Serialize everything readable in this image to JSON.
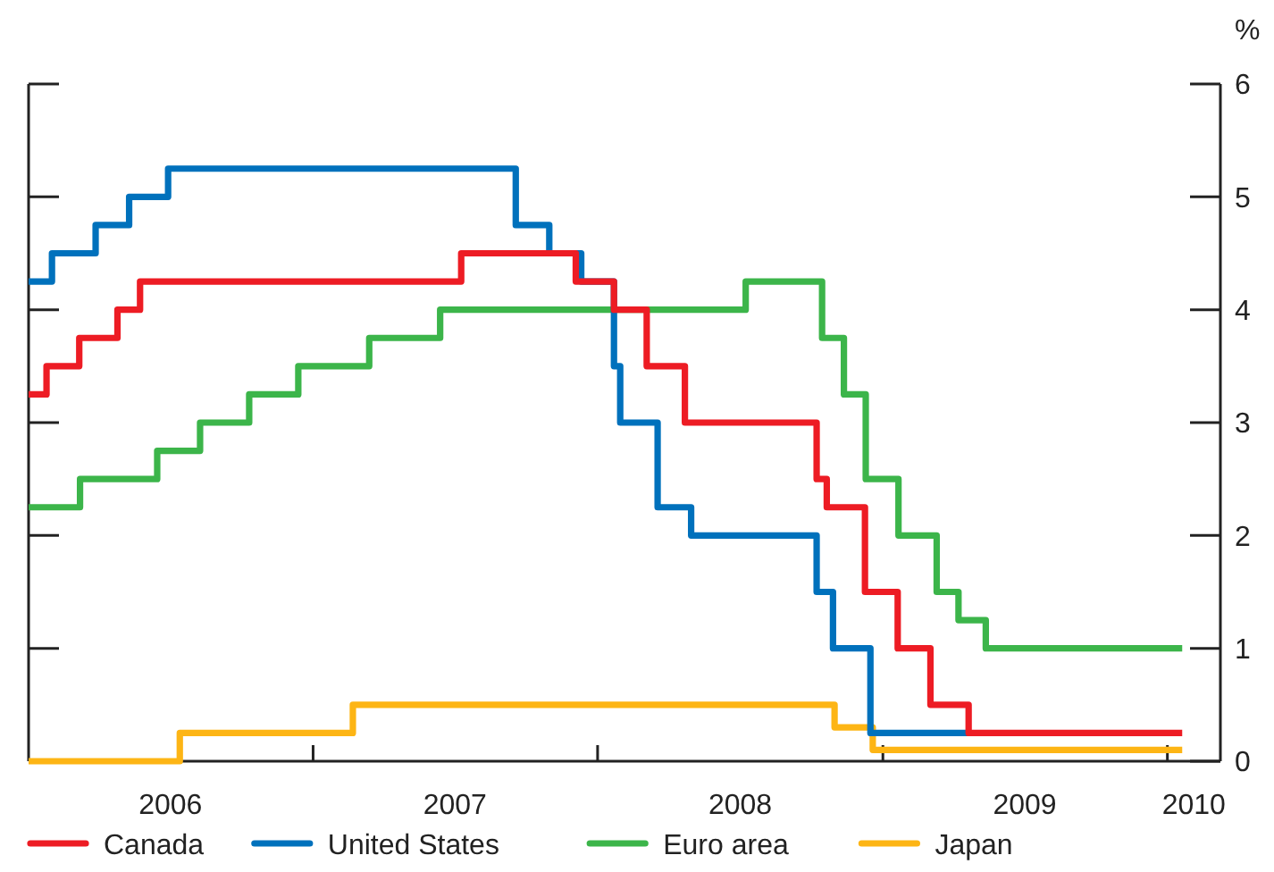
{
  "chart_data": {
    "type": "step",
    "ylabel": "%",
    "xlim": [
      "2006-01-01",
      "2010-03-10"
    ],
    "ylim": [
      0,
      6
    ],
    "yticks": [
      0,
      1,
      2,
      3,
      4,
      5,
      6
    ],
    "xticks": [
      {
        "value": "2007-01-01",
        "label": null
      },
      {
        "value": "2008-01-01",
        "label": null
      },
      {
        "value": "2009-01-01",
        "label": null
      },
      {
        "value": "2010-01-01",
        "label": null
      },
      {
        "value": "2006-07-02",
        "label": "2006"
      },
      {
        "value": "2007-07-02",
        "label": "2007"
      },
      {
        "value": "2008-07-02",
        "label": "2008"
      },
      {
        "value": "2009-07-02",
        "label": "2009"
      },
      {
        "value": "2010-02-04",
        "label": "2010"
      }
    ],
    "grid": false,
    "legend": "bottom",
    "line_style": "solid",
    "marker": "none",
    "series": [
      {
        "name": "Canada",
        "color": "#ed1c24",
        "x": [
          "2006-01-01",
          "2006-01-24",
          "2006-03-07",
          "2006-04-25",
          "2006-05-24",
          "2007-07-10",
          "2007-12-04",
          "2008-01-22",
          "2008-03-04",
          "2008-04-22",
          "2008-10-08",
          "2008-10-21",
          "2008-12-09",
          "2009-01-20",
          "2009-03-03",
          "2009-04-21",
          "2010-01-20"
        ],
        "values": [
          3.25,
          3.5,
          3.75,
          4.0,
          4.25,
          4.5,
          4.25,
          4.0,
          3.5,
          3.0,
          2.5,
          2.25,
          1.5,
          1.0,
          0.5,
          0.25,
          0.25
        ]
      },
      {
        "name": "United States",
        "color": "#0071bc",
        "x": [
          "2006-01-01",
          "2006-01-31",
          "2006-03-28",
          "2006-05-10",
          "2006-06-29",
          "2007-09-18",
          "2007-10-31",
          "2007-12-11",
          "2008-01-22",
          "2008-01-30",
          "2008-03-18",
          "2008-04-30",
          "2008-10-08",
          "2008-10-29",
          "2008-12-16",
          "2009-04-21"
        ],
        "values": [
          4.25,
          4.5,
          4.75,
          5.0,
          5.25,
          4.75,
          4.5,
          4.25,
          3.5,
          3.0,
          2.25,
          2.0,
          1.5,
          1.0,
          0.25,
          0.25
        ]
      },
      {
        "name": "Euro area",
        "color": "#3cb54a",
        "x": [
          "2006-01-01",
          "2006-03-08",
          "2006-06-15",
          "2006-08-09",
          "2006-10-11",
          "2006-12-13",
          "2007-03-14",
          "2007-06-13",
          "2008-07-09",
          "2008-10-15",
          "2008-11-12",
          "2008-12-10",
          "2009-01-21",
          "2009-03-11",
          "2009-04-08",
          "2009-05-13",
          "2010-01-20"
        ],
        "values": [
          2.25,
          2.5,
          2.75,
          3.0,
          3.25,
          3.5,
          3.75,
          4.0,
          4.25,
          3.75,
          3.25,
          2.5,
          2.0,
          1.5,
          1.25,
          1.0,
          1.0
        ]
      },
      {
        "name": "Japan",
        "color": "#fdb515",
        "x": [
          "2006-01-01",
          "2006-07-14",
          "2007-02-21",
          "2008-10-31",
          "2008-12-19",
          "2010-01-20"
        ],
        "values": [
          0,
          0.25,
          0.5,
          0.3,
          0.1,
          0.1
        ]
      }
    ]
  }
}
